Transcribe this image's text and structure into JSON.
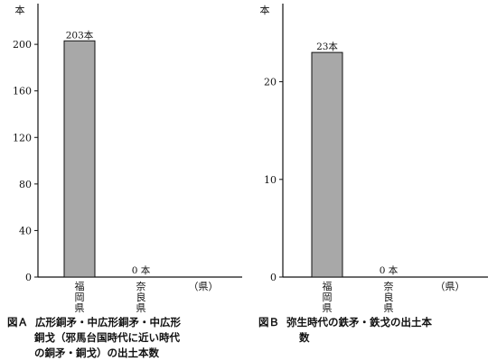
{
  "chart_data": [
    {
      "type": "bar",
      "panel": "A",
      "unit_label": "本",
      "categories": [
        "福岡県",
        "奈良県",
        "（県）"
      ],
      "values": [
        203,
        0,
        null
      ],
      "data_labels": [
        "203本",
        "0 本",
        ""
      ],
      "yticks": [
        0,
        40,
        80,
        120,
        160,
        200
      ],
      "ylim": [
        0,
        235
      ],
      "grid": false,
      "bar_color": "#a8a8a8"
    },
    {
      "type": "bar",
      "panel": "B",
      "unit_label": "本",
      "categories": [
        "福岡県",
        "奈良県",
        "（県）"
      ],
      "values": [
        23,
        0,
        null
      ],
      "data_labels": [
        "23本",
        "0 本",
        ""
      ],
      "yticks": [
        0,
        10,
        20
      ],
      "ylim": [
        0,
        28
      ],
      "grid": false,
      "bar_color": "#a8a8a8"
    }
  ],
  "captions": {
    "a": {
      "label": "図Ａ",
      "lines": [
        "広形銅矛・中広形銅矛・中広形",
        "銅戈（邪馬台国時代に近い時代",
        "の銅矛・銅戈）の出土本数"
      ]
    },
    "b": {
      "label": "図Ｂ",
      "lines": [
        "弥生時代の鉄矛・鉄戈の出土本",
        "数"
      ]
    }
  }
}
